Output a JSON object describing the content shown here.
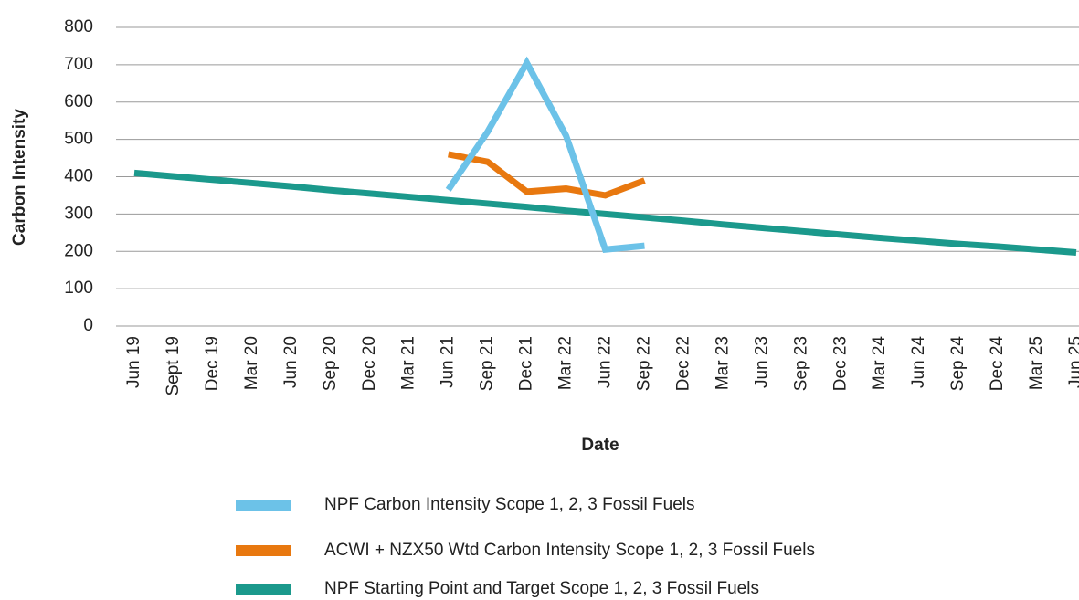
{
  "chart_data": {
    "type": "line",
    "y_label": "Carbon Intensity",
    "x_label": "Date",
    "categories": [
      "Jun 19",
      "Sept 19",
      "Dec 19",
      "Mar 20",
      "Jun 20",
      "Sep 20",
      "Dec 20",
      "Mar 21",
      "Jun 21",
      "Sep 21",
      "Dec 21",
      "Mar 22",
      "Jun 22",
      "Sep 22",
      "Dec 22",
      "Mar 23",
      "Jun 23",
      "Sep 23",
      "Dec 23",
      "Mar 24",
      "Jun 24",
      "Sep 24",
      "Dec 24",
      "Mar 25",
      "Jun 25"
    ],
    "series": [
      {
        "name": "NPF Carbon Intensity Scope 1, 2, 3 Fossil Fuels",
        "color": "#6cc2e8",
        "values": [
          null,
          null,
          null,
          null,
          null,
          null,
          null,
          null,
          365,
          520,
          705,
          510,
          205,
          215,
          null,
          null,
          null,
          null,
          null,
          null,
          null,
          null,
          null,
          null,
          null
        ]
      },
      {
        "name": "ACWI + NZX50 Wtd Carbon Intensity Scope 1, 2, 3 Fossil Fuels",
        "color": "#e8780f",
        "values": [
          null,
          null,
          null,
          null,
          null,
          null,
          null,
          null,
          460,
          440,
          360,
          368,
          350,
          390,
          null,
          null,
          null,
          null,
          null,
          null,
          null,
          null,
          null,
          null,
          null
        ]
      },
      {
        "name": "NPF Starting Point and Target Scope 1, 2, 3 Fossil Fuels",
        "color": "#1b998c",
        "values": [
          410,
          401,
          392,
          383,
          374,
          364,
          355,
          346,
          337,
          328,
          319,
          309,
          300,
          291,
          282,
          272,
          263,
          254,
          245,
          236,
          228,
          220,
          213,
          205,
          197
        ]
      }
    ],
    "ylim": [
      0,
      800
    ],
    "yticks": [
      0,
      100,
      200,
      300,
      400,
      500,
      600,
      700,
      800
    ],
    "grid": true
  }
}
